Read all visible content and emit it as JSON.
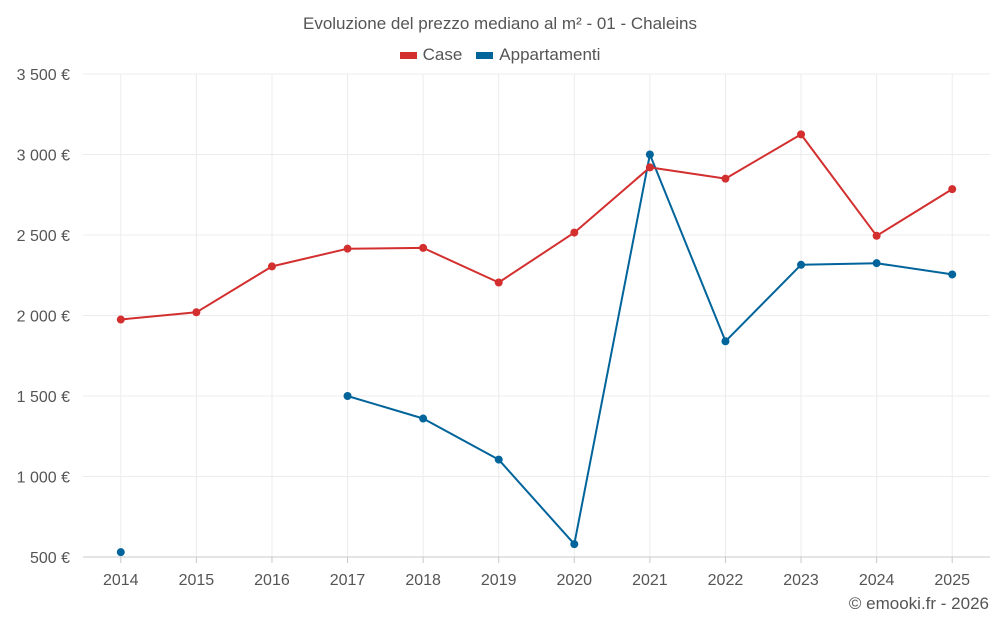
{
  "chart_data": {
    "type": "line",
    "title": "Evoluzione del prezzo mediano al m² - 01 - Chaleins",
    "categories": [
      "2014",
      "2015",
      "2016",
      "2017",
      "2018",
      "2019",
      "2020",
      "2021",
      "2022",
      "2023",
      "2024",
      "2025"
    ],
    "y_tick_labels": [
      "500 €",
      "1 000 €",
      "1 500 €",
      "2 000 €",
      "2 500 €",
      "3 000 €",
      "3 500 €"
    ],
    "y_ticks": [
      500,
      1000,
      1500,
      2000,
      2500,
      3000,
      3500
    ],
    "ylim": [
      500,
      3500
    ],
    "xlabel": "",
    "ylabel": "",
    "grid": true,
    "legend_position": "top-center",
    "series": [
      {
        "name": "Case",
        "color": "#d32f2f",
        "values": [
          1975,
          2020,
          2305,
          2415,
          2420,
          2205,
          2515,
          2920,
          2850,
          3125,
          2495,
          2785
        ]
      },
      {
        "name": "Appartamenti",
        "color": "#01649b",
        "values": [
          530,
          null,
          null,
          1500,
          1360,
          1105,
          580,
          3000,
          1840,
          2315,
          2325,
          2255
        ]
      }
    ]
  },
  "credit": "© emooki.fr - 2026"
}
